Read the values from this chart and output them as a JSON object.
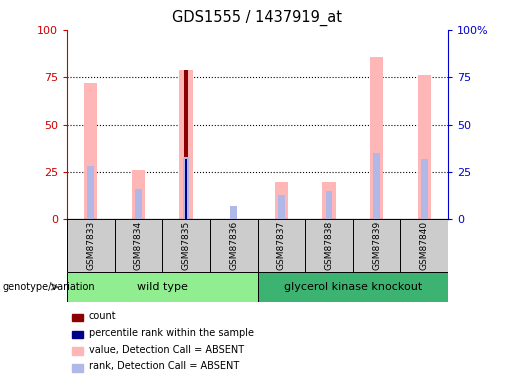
{
  "title": "GDS1555 / 1437919_at",
  "samples": [
    "GSM87833",
    "GSM87834",
    "GSM87835",
    "GSM87836",
    "GSM87837",
    "GSM87838",
    "GSM87839",
    "GSM87840"
  ],
  "value_absent": [
    72,
    26,
    79,
    0,
    20,
    20,
    86,
    76
  ],
  "rank_absent": [
    28,
    16,
    33,
    7,
    13,
    15,
    35,
    32
  ],
  "count": [
    0,
    0,
    79,
    0,
    0,
    0,
    0,
    0
  ],
  "percentile_rank": [
    0,
    0,
    32,
    0,
    0,
    0,
    0,
    0
  ],
  "groups": [
    {
      "label": "wild type",
      "start": 0,
      "end": 4,
      "color": "#90EE90"
    },
    {
      "label": "glycerol kinase knockout",
      "start": 4,
      "end": 8,
      "color": "#3CB371"
    }
  ],
  "ylim": [
    0,
    100
  ],
  "yticks": [
    0,
    25,
    50,
    75,
    100
  ],
  "left_axis_color": "#CC0000",
  "right_axis_color": "#0000CC",
  "value_color": "#FFB6B6",
  "rank_color": "#B0B8E8",
  "count_color": "#8B0000",
  "prank_color": "#00008B",
  "bg_color": "#CCCCCC",
  "plot_bg": "#FFFFFF",
  "geno_label": "genotype/variation",
  "legend_items": [
    {
      "color": "#8B0000",
      "label": "count"
    },
    {
      "color": "#00008B",
      "label": "percentile rank within the sample"
    },
    {
      "color": "#FFB6B6",
      "label": "value, Detection Call = ABSENT"
    },
    {
      "color": "#B0B8E8",
      "label": "rank, Detection Call = ABSENT"
    }
  ]
}
